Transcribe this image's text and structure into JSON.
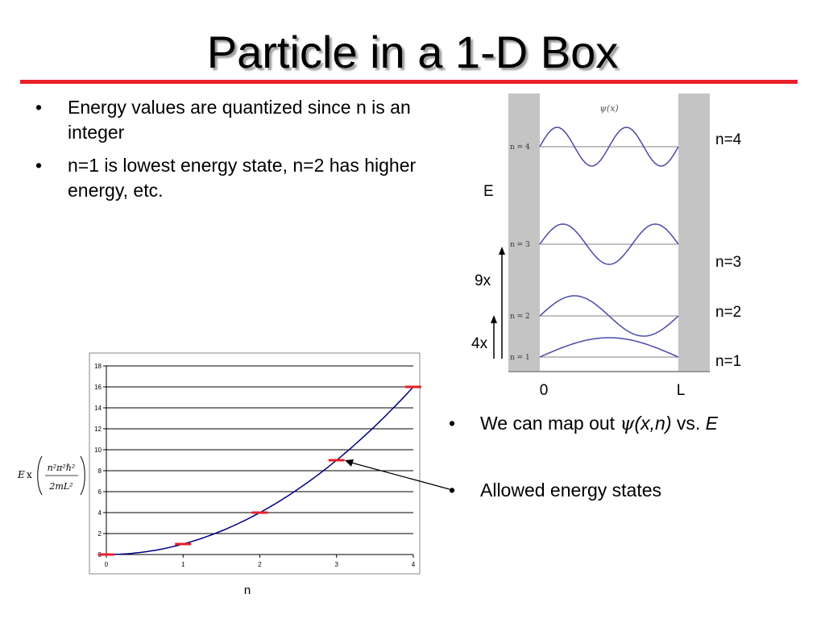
{
  "slide": {
    "title": "Particle in a 1-D Box",
    "accent_color": "#e8202a"
  },
  "bullets_top": [
    "Energy values are quantized since n is an integer",
    "n=1 is lowest energy state, n=2 has higher energy, etc."
  ],
  "bullets_bottom": {
    "map": {
      "prefix": "We can map out ",
      "psi": "ψ",
      "args": "(x,n)",
      "mid": " vs. ",
      "var": "E"
    },
    "allowed": "Allowed energy states"
  },
  "box_figure": {
    "psi_title": "ψ(x)",
    "inner_levels": [
      "n = 4",
      "n = 3",
      "n = 2",
      "n = 1"
    ],
    "outer_levels": [
      "n=4",
      "n=3",
      "n=2",
      "n=1"
    ],
    "energy_label": "E",
    "ratio_9": "9x",
    "ratio_4": "4x",
    "x_start": "0",
    "x_end": "L",
    "wall_color": "#c4c4c4",
    "wave_color": "#4a4aa8"
  },
  "chart_data": {
    "type": "line",
    "x": [
      0,
      1,
      2,
      3,
      4
    ],
    "series": [
      {
        "values": [
          0,
          1,
          4,
          9,
          16
        ]
      }
    ],
    "markers": [
      {
        "x": 0,
        "y": 0
      },
      {
        "x": 1,
        "y": 1
      },
      {
        "x": 2,
        "y": 4
      },
      {
        "x": 3,
        "y": 9
      },
      {
        "x": 4,
        "y": 16
      }
    ],
    "xticks": [
      "0",
      "1",
      "2",
      "3",
      "4"
    ],
    "yticks": [
      "0",
      "2",
      "4",
      "6",
      "8",
      "10",
      "12",
      "14",
      "16",
      "18"
    ],
    "xlim": [
      0,
      4
    ],
    "ylim": [
      0,
      18
    ],
    "xlabel": "n",
    "ylabel_parts": {
      "e": "E",
      "x": "x",
      "num": "n²π²ℏ²",
      "den": "2mL²"
    },
    "grid": true,
    "line_color": "#000080",
    "marker_color": "#e8202a"
  }
}
